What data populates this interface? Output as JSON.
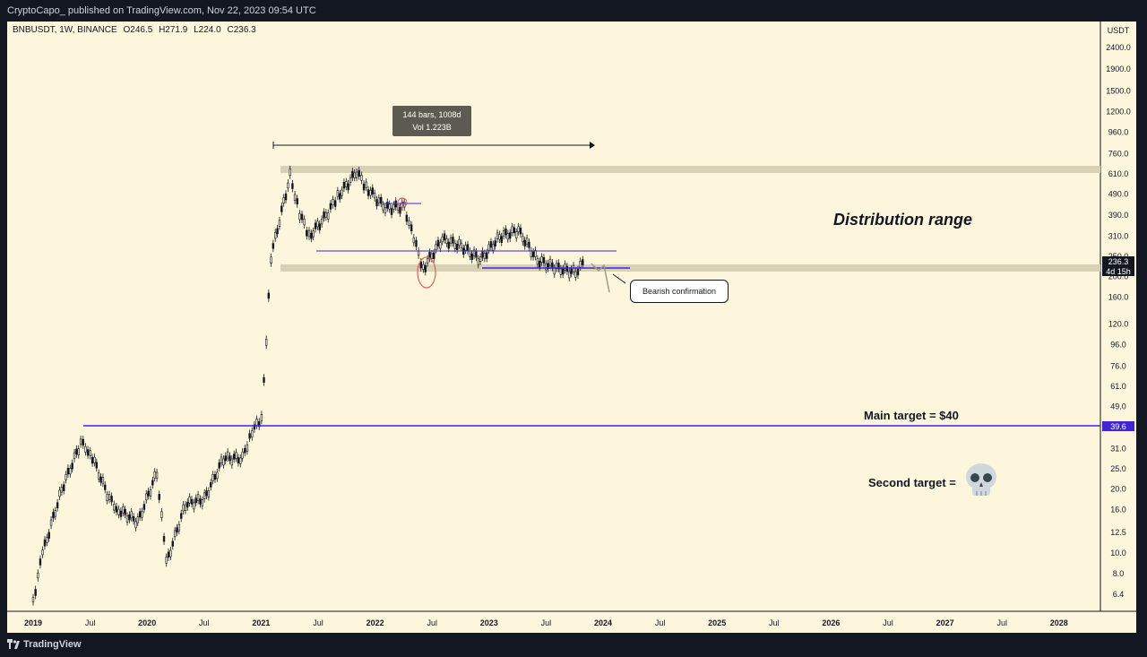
{
  "header": {
    "publisher": "CryptoCapo_ published on TradingView.com, Nov 22, 2023 09:54 UTC"
  },
  "symbol_line": {
    "symbol": "BNBUSDT, 1W, BINANCE",
    "open": "O246.5",
    "high": "H271.9",
    "low": "L224.0",
    "close": "C236.3"
  },
  "footer": {
    "brand": "TradingView"
  },
  "annotations": {
    "measure_bars": "144 bars, 1008d",
    "measure_vol": "Vol 1.223B",
    "bearish": "Bearish confirmation",
    "distribution": "Distribution range",
    "main_target": "Main target = $40",
    "second_target": "Second target =",
    "skull_icon": "skull-emoji"
  },
  "price_axis": {
    "currency": "USDT",
    "price_badge": "236.3",
    "countdown_badge": "4d 15h",
    "target_badge": "39.6"
  },
  "colors": {
    "background": "#fdf6dc",
    "frame": "#131722",
    "zone": "#d8d1b6",
    "target_line": "#3f27d6",
    "candle": "#131722",
    "highlight": "#e55b5b"
  },
  "chart_data": {
    "type": "candlestick",
    "symbol": "BNBUSDT",
    "interval": "1W",
    "exchange": "BINANCE",
    "y_scale": "log",
    "y_ticks": [
      6.4,
      8.0,
      10.0,
      12.5,
      16.0,
      20.0,
      25.0,
      31.0,
      39.6,
      49.0,
      61.0,
      76.0,
      96.0,
      120.0,
      160.0,
      200.0,
      250.0,
      310.0,
      390.0,
      490.0,
      610.0,
      760.0,
      960.0,
      1200.0,
      1500.0,
      1900.0,
      2400.0
    ],
    "x_ticks": [
      "2019",
      "Jul",
      "2020",
      "Jul",
      "2021",
      "Jul",
      "2022",
      "Jul",
      "2023",
      "Jul",
      "2024",
      "Jul",
      "2025",
      "Jul",
      "2026",
      "Jul",
      "2027",
      "Jul",
      "2028"
    ],
    "price_path": [
      [
        "2019-01",
        6.0
      ],
      [
        "2019-02",
        10.0
      ],
      [
        "2019-04",
        20.0
      ],
      [
        "2019-06",
        33.0
      ],
      [
        "2019-07",
        30.0
      ],
      [
        "2019-09",
        18.0
      ],
      [
        "2019-10",
        16.0
      ],
      [
        "2019-12",
        14.0
      ],
      [
        "2020-02",
        24.0
      ],
      [
        "2020-03",
        9.0
      ],
      [
        "2020-05",
        17.0
      ],
      [
        "2020-07",
        18.0
      ],
      [
        "2020-09",
        28.0
      ],
      [
        "2020-11",
        28.0
      ],
      [
        "2020-12",
        38.0
      ],
      [
        "2021-01",
        42.0
      ],
      [
        "2021-02",
        250.0
      ],
      [
        "2021-04",
        600.0
      ],
      [
        "2021-05",
        400.0
      ],
      [
        "2021-06",
        310.0
      ],
      [
        "2021-08",
        400.0
      ],
      [
        "2021-09",
        480.0
      ],
      [
        "2021-11",
        620.0
      ],
      [
        "2021-12",
        530.0
      ],
      [
        "2022-02",
        420.0
      ],
      [
        "2022-04",
        430.0
      ],
      [
        "2022-05",
        300.0
      ],
      [
        "2022-06",
        220.0
      ],
      [
        "2022-08",
        300.0
      ],
      [
        "2022-10",
        280.0
      ],
      [
        "2022-12",
        240.0
      ],
      [
        "2023-02",
        310.0
      ],
      [
        "2023-04",
        330.0
      ],
      [
        "2023-06",
        240.0
      ],
      [
        "2023-08",
        220.0
      ],
      [
        "2023-10",
        210.0
      ],
      [
        "2023-11",
        236.3
      ]
    ],
    "horizontal_levels": [
      {
        "name": "Main target",
        "value": 39.6
      },
      {
        "name": "Range top",
        "value": 620.0
      },
      {
        "name": "Range bottom",
        "value": 220.0
      }
    ],
    "last_price": 236.3
  }
}
